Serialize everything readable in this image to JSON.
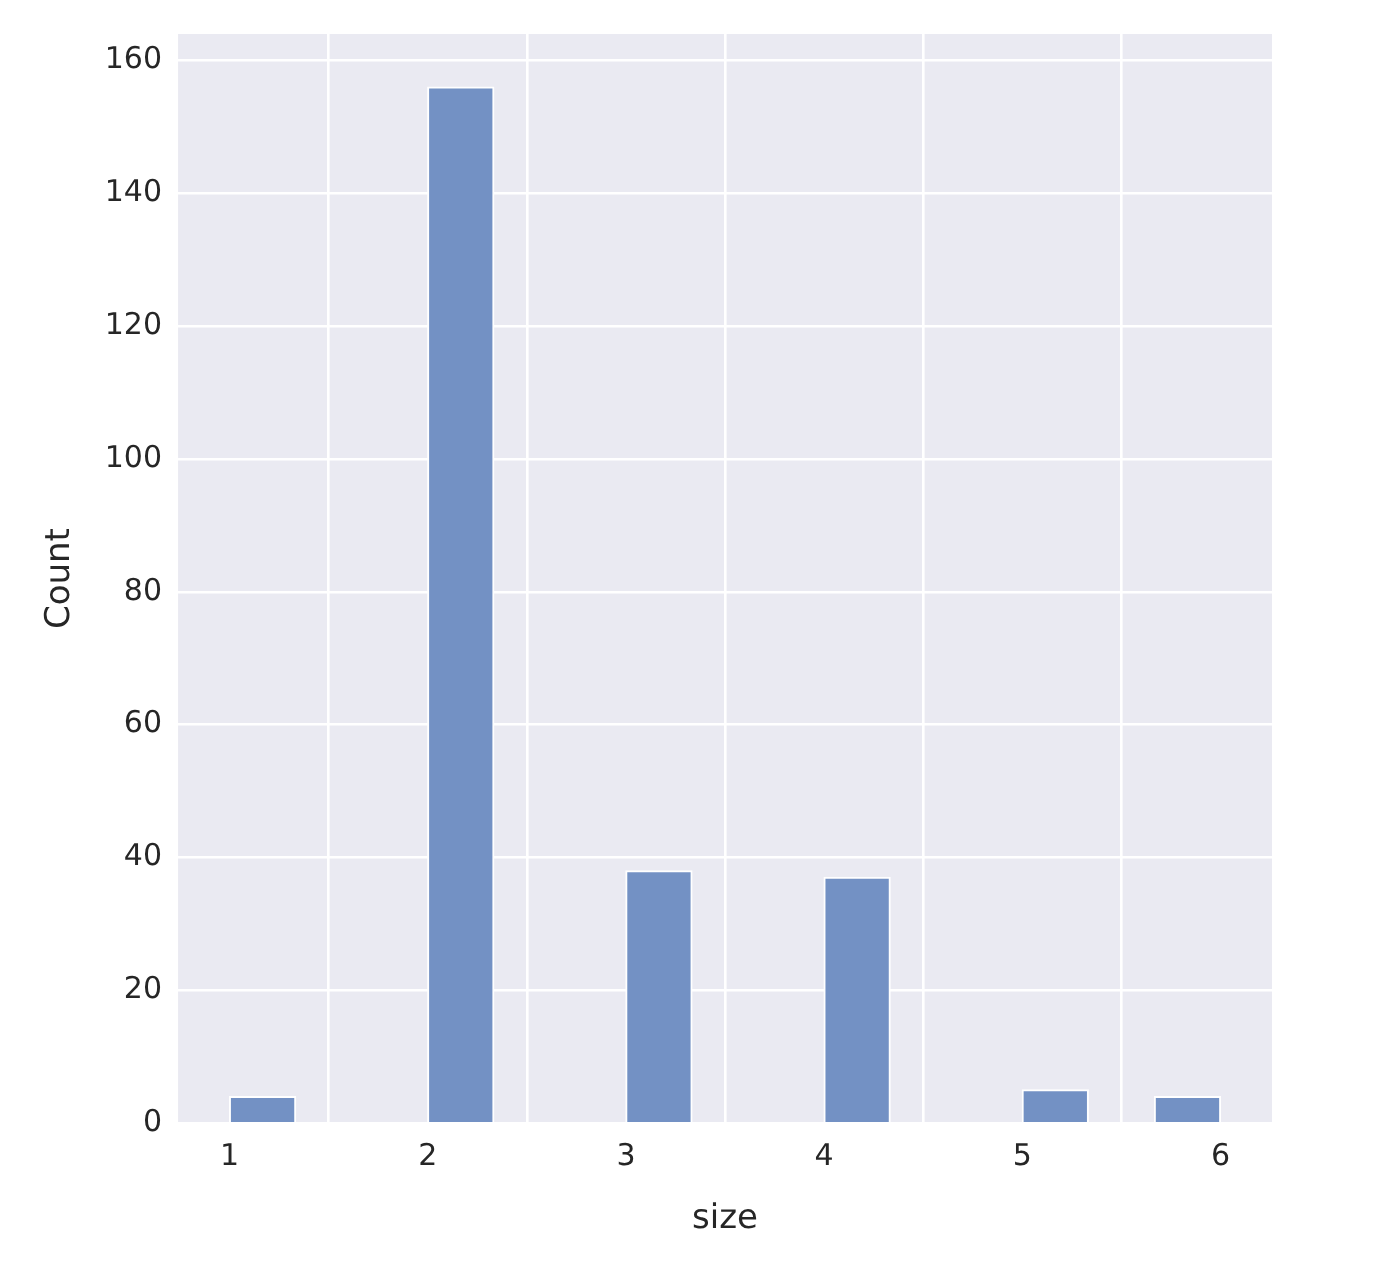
{
  "chart_data": {
    "type": "histogram",
    "xlabel": "size",
    "ylabel": "Count",
    "bins": [
      1,
      1.333,
      1.667,
      2,
      2.333,
      2.667,
      3,
      3.333,
      3.667,
      4,
      4.333,
      4.667,
      5,
      5.333,
      5.667,
      6
    ],
    "values": [
      4,
      0,
      0,
      156,
      0,
      0,
      38,
      0,
      0,
      37,
      0,
      0,
      5,
      0,
      4
    ],
    "color": "#7391c4",
    "xlim": [
      0.74,
      6.26
    ],
    "xticks": [
      1,
      2,
      3,
      4,
      5,
      6
    ],
    "ylim": [
      0,
      164
    ],
    "yticks": [
      0,
      20,
      40,
      60,
      80,
      100,
      120,
      140,
      160
    ],
    "grid": true
  }
}
